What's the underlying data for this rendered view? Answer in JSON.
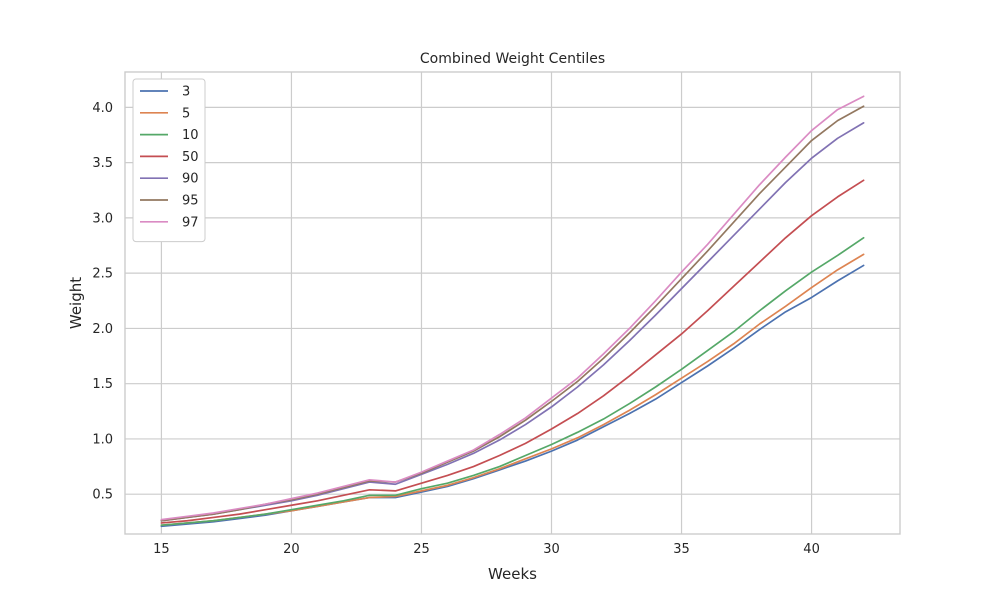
{
  "chart_data": {
    "type": "line",
    "title": "Combined Weight Centiles",
    "xlabel": "Weeks",
    "ylabel": "Weight",
    "xlim": [
      13.6,
      43.4
    ],
    "ylim": [
      0.14,
      4.32
    ],
    "xticks": [
      15,
      20,
      25,
      30,
      35,
      40
    ],
    "yticks": [
      0.5,
      1.0,
      1.5,
      2.0,
      2.5,
      3.0,
      3.5,
      4.0
    ],
    "xtick_labels": [
      "15",
      "20",
      "25",
      "30",
      "35",
      "40"
    ],
    "ytick_labels": [
      "0.5",
      "1.0",
      "1.5",
      "2.0",
      "2.5",
      "3.0",
      "3.5",
      "4.0"
    ],
    "grid": true,
    "legend_position": "top-left",
    "x": [
      15,
      16,
      17,
      18,
      19,
      20,
      21,
      22,
      23,
      24,
      25,
      26,
      27,
      28,
      29,
      30,
      31,
      32,
      33,
      34,
      35,
      36,
      37,
      38,
      39,
      40,
      41,
      42
    ],
    "series": [
      {
        "name": "3",
        "color": "#4c72b0",
        "values": [
          0.21,
          0.23,
          0.25,
          0.28,
          0.31,
          0.35,
          0.39,
          0.43,
          0.47,
          0.47,
          0.52,
          0.57,
          0.64,
          0.72,
          0.8,
          0.89,
          0.99,
          1.11,
          1.23,
          1.36,
          1.51,
          1.66,
          1.82,
          1.99,
          2.15,
          2.28,
          2.43,
          2.57
        ]
      },
      {
        "name": "5",
        "color": "#dd8452",
        "values": [
          0.22,
          0.24,
          0.26,
          0.29,
          0.32,
          0.35,
          0.39,
          0.43,
          0.47,
          0.48,
          0.53,
          0.58,
          0.65,
          0.73,
          0.82,
          0.91,
          1.01,
          1.13,
          1.26,
          1.4,
          1.55,
          1.7,
          1.86,
          2.04,
          2.2,
          2.37,
          2.53,
          2.67
        ]
      },
      {
        "name": "10",
        "color": "#55a868",
        "values": [
          0.22,
          0.24,
          0.26,
          0.29,
          0.32,
          0.36,
          0.4,
          0.44,
          0.49,
          0.49,
          0.55,
          0.6,
          0.67,
          0.75,
          0.85,
          0.95,
          1.06,
          1.18,
          1.32,
          1.47,
          1.63,
          1.8,
          1.97,
          2.16,
          2.34,
          2.51,
          2.66,
          2.82
        ]
      },
      {
        "name": "50",
        "color": "#c44e52",
        "values": [
          0.24,
          0.26,
          0.29,
          0.32,
          0.36,
          0.4,
          0.44,
          0.49,
          0.54,
          0.53,
          0.6,
          0.67,
          0.75,
          0.85,
          0.96,
          1.09,
          1.23,
          1.39,
          1.57,
          1.76,
          1.95,
          2.16,
          2.38,
          2.6,
          2.82,
          3.02,
          3.19,
          3.34
        ]
      },
      {
        "name": "90",
        "color": "#8172b3",
        "values": [
          0.26,
          0.29,
          0.32,
          0.36,
          0.4,
          0.44,
          0.49,
          0.55,
          0.61,
          0.59,
          0.68,
          0.77,
          0.87,
          0.99,
          1.13,
          1.29,
          1.47,
          1.67,
          1.89,
          2.12,
          2.36,
          2.6,
          2.84,
          3.08,
          3.32,
          3.54,
          3.72,
          3.86
        ]
      },
      {
        "name": "95",
        "color": "#937860",
        "values": [
          0.26,
          0.29,
          0.32,
          0.36,
          0.41,
          0.45,
          0.5,
          0.56,
          0.62,
          0.61,
          0.69,
          0.79,
          0.89,
          1.02,
          1.17,
          1.34,
          1.52,
          1.73,
          1.96,
          2.2,
          2.45,
          2.7,
          2.96,
          3.22,
          3.46,
          3.7,
          3.88,
          4.01
        ]
      },
      {
        "name": "97",
        "color": "#da8bc3",
        "values": [
          0.27,
          0.3,
          0.33,
          0.37,
          0.41,
          0.46,
          0.51,
          0.57,
          0.63,
          0.61,
          0.7,
          0.8,
          0.9,
          1.04,
          1.19,
          1.37,
          1.55,
          1.77,
          2.0,
          2.25,
          2.51,
          2.76,
          3.03,
          3.3,
          3.55,
          3.79,
          3.98,
          4.1
        ]
      }
    ]
  }
}
